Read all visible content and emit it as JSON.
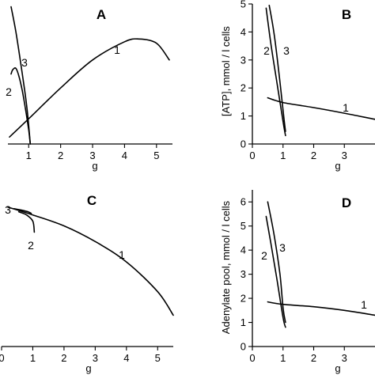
{
  "chart_data": [
    {
      "panel": "A",
      "type": "line",
      "xlabel": "g",
      "ylabel": "",
      "xlim": [
        0.35,
        5.5
      ],
      "ylim": [
        0,
        1
      ],
      "xticks": [
        1,
        2,
        3,
        4,
        5
      ],
      "yticks": [],
      "series": [
        {
          "name": "1",
          "x": [
            0.4,
            1.0,
            2.0,
            3.0,
            4.0,
            4.45,
            5.0,
            5.4
          ],
          "y": [
            0.05,
            0.18,
            0.4,
            0.6,
            0.73,
            0.75,
            0.72,
            0.6
          ]
        },
        {
          "name": "2",
          "x": [
            0.45,
            0.5,
            0.6,
            0.7,
            0.8,
            0.9,
            1.0,
            1.05
          ],
          "y": [
            0.5,
            0.53,
            0.54,
            0.48,
            0.38,
            0.25,
            0.1,
            0.0
          ]
        },
        {
          "name": "3",
          "x": [
            0.45,
            0.6,
            0.8,
            0.95,
            1.05
          ],
          "y": [
            0.98,
            0.8,
            0.5,
            0.25,
            0.0
          ]
        }
      ]
    },
    {
      "panel": "B",
      "type": "line",
      "xlabel": "g",
      "ylabel": "[ATP], mmol / l cells",
      "xlim": [
        0,
        4
      ],
      "ylim": [
        0,
        5
      ],
      "xticks": [
        0,
        1,
        2,
        3
      ],
      "yticks": [
        0,
        1,
        2,
        3,
        4,
        5
      ],
      "series": [
        {
          "name": "1",
          "x": [
            0.5,
            1.0,
            2.0,
            3.0,
            4.0
          ],
          "y": [
            1.65,
            1.48,
            1.3,
            1.1,
            0.88
          ]
        },
        {
          "name": "2",
          "x": [
            0.45,
            0.6,
            0.8,
            1.0,
            1.08
          ],
          "y": [
            4.85,
            3.6,
            2.2,
            0.8,
            0.3
          ]
        },
        {
          "name": "3",
          "x": [
            0.55,
            0.7,
            0.85,
            1.0,
            1.08
          ],
          "y": [
            4.95,
            4.0,
            2.7,
            1.2,
            0.45
          ]
        }
      ]
    },
    {
      "panel": "C",
      "type": "line",
      "xlabel": "g",
      "ylabel": "",
      "xlim": [
        0,
        5.5
      ],
      "ylim": [
        0,
        1
      ],
      "xticks": [
        0,
        1,
        2,
        3,
        4,
        5
      ],
      "yticks": [],
      "series": [
        {
          "name": "1",
          "x": [
            0.2,
            1.0,
            2.0,
            3.0,
            4.0,
            5.0,
            5.5
          ],
          "y": [
            0.89,
            0.84,
            0.77,
            0.67,
            0.54,
            0.35,
            0.2
          ]
        },
        {
          "name": "2",
          "x": [
            0.55,
            0.8,
            1.0,
            1.05
          ],
          "y": [
            0.86,
            0.84,
            0.8,
            0.73
          ]
        },
        {
          "name": "3",
          "x": [
            0.4,
            0.65,
            0.85,
            0.95
          ],
          "y": [
            0.88,
            0.87,
            0.86,
            0.85
          ]
        }
      ]
    },
    {
      "panel": "D",
      "type": "line",
      "xlabel": "g",
      "ylabel": "Adenylate pool, mmol / l cells",
      "xlim": [
        0,
        4
      ],
      "ylim": [
        0,
        6.5
      ],
      "xticks": [
        0,
        1,
        2,
        3
      ],
      "yticks": [
        0,
        1,
        2,
        3,
        4,
        5,
        6
      ],
      "series": [
        {
          "name": "1",
          "x": [
            0.5,
            1.0,
            2.0,
            3.0,
            4.0
          ],
          "y": [
            1.85,
            1.75,
            1.65,
            1.5,
            1.3
          ]
        },
        {
          "name": "2",
          "x": [
            0.45,
            0.6,
            0.8,
            1.0,
            1.08
          ],
          "y": [
            5.4,
            4.3,
            2.8,
            1.2,
            0.8
          ]
        },
        {
          "name": "3",
          "x": [
            0.5,
            0.7,
            0.9,
            1.0,
            1.08
          ],
          "y": [
            6.0,
            4.7,
            3.0,
            1.6,
            1.0
          ]
        }
      ]
    }
  ]
}
